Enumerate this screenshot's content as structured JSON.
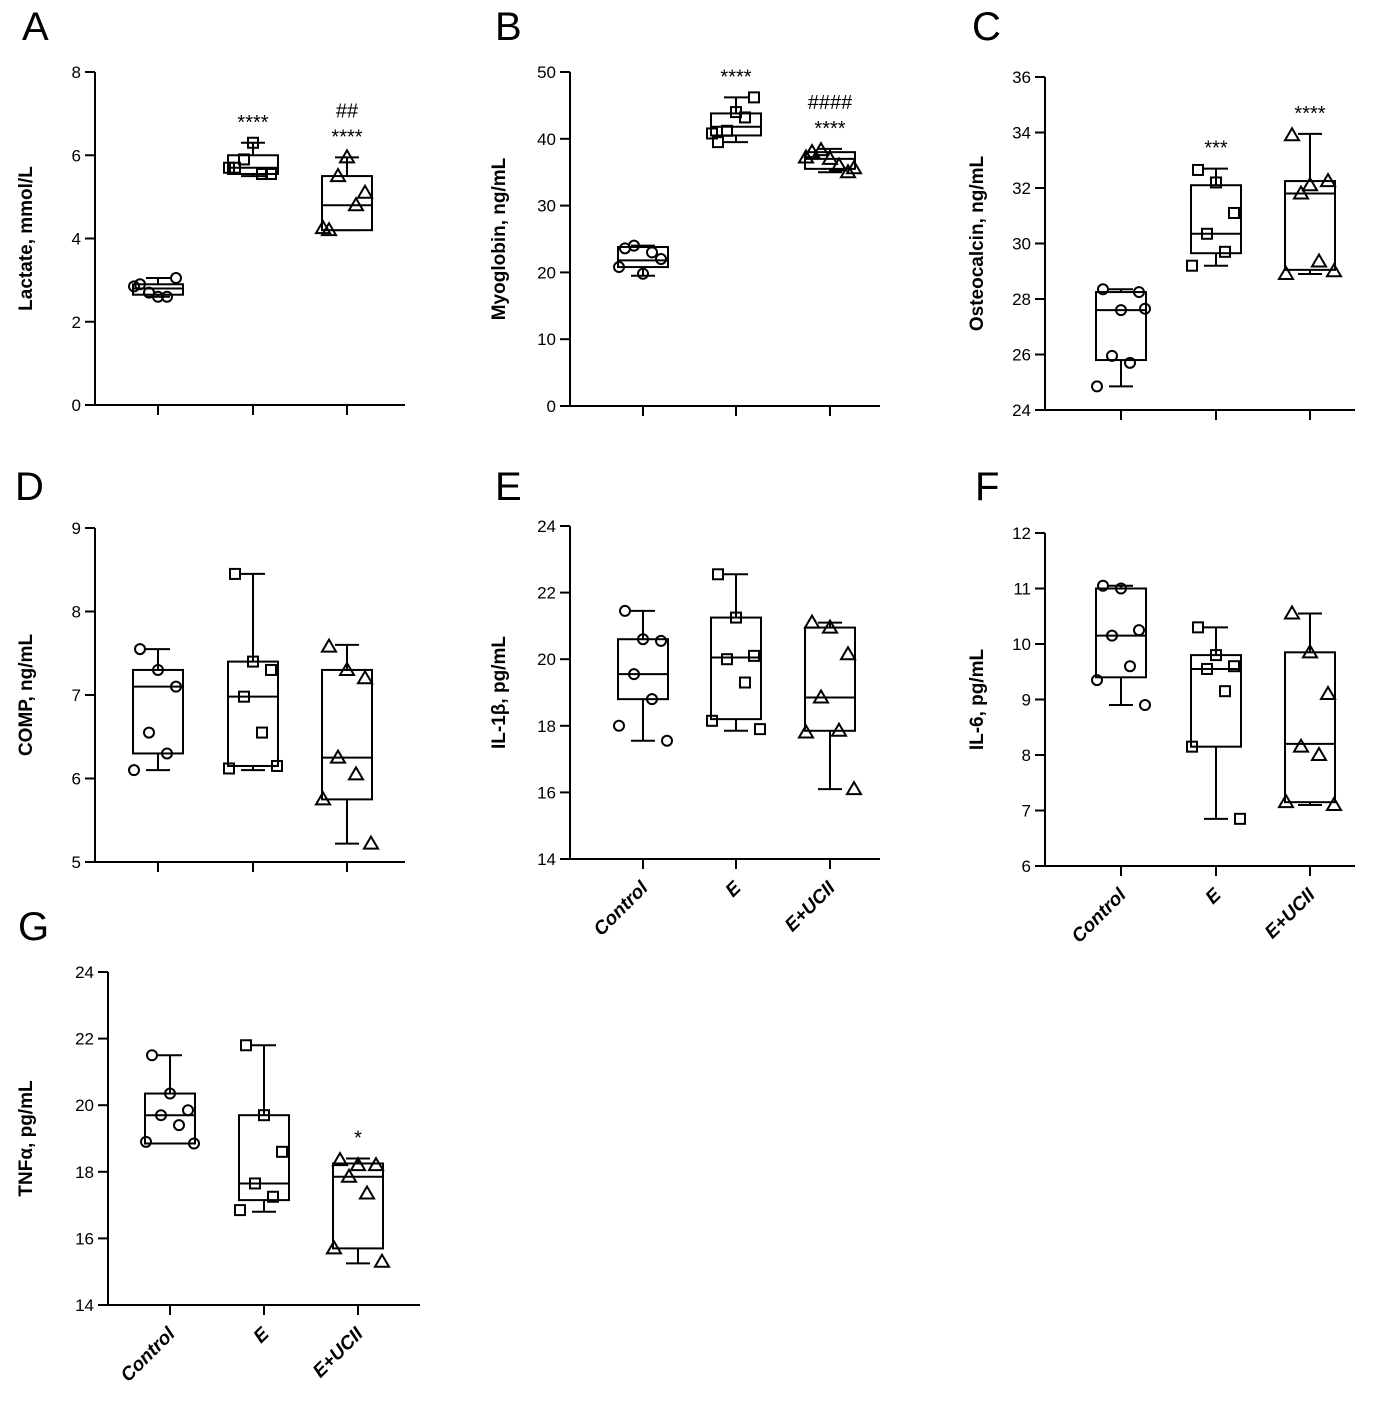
{
  "figure": {
    "groups": [
      "Control",
      "E",
      "E+UCII"
    ],
    "marker_shapes": [
      "circle",
      "square",
      "triangle"
    ]
  },
  "chart_data": [
    {
      "type": "box",
      "panel": "A",
      "ylabel": "Lactate, mmol/L",
      "ylim": [
        0,
        8
      ],
      "yticks": [
        0,
        2,
        4,
        6,
        8
      ],
      "show_xlabels": false,
      "groups": [
        {
          "name": "Control",
          "min": 2.6,
          "q1": 2.65,
          "median": 2.8,
          "q3": 2.9,
          "max": 3.05,
          "points": [
            2.9,
            2.6,
            3.05,
            2.7,
            2.6,
            2.85
          ],
          "annotations": []
        },
        {
          "name": "E",
          "min": 5.5,
          "q1": 5.55,
          "median": 5.7,
          "q3": 6.0,
          "max": 6.3,
          "points": [
            5.7,
            6.3,
            5.55,
            5.9,
            5.55,
            5.7
          ],
          "annotations": [
            "****"
          ]
        },
        {
          "name": "E+UCII",
          "min": 4.2,
          "q1": 4.2,
          "median": 4.8,
          "q3": 5.5,
          "max": 5.95,
          "points": [
            4.2,
            5.95,
            5.1,
            5.5,
            4.8,
            4.25
          ],
          "annotations": [
            "##",
            "****"
          ]
        }
      ]
    },
    {
      "type": "box",
      "panel": "B",
      "ylabel": "Myoglobin, ng/mL",
      "ylim": [
        0,
        50
      ],
      "yticks": [
        0,
        10,
        20,
        30,
        40,
        50
      ],
      "show_xlabels": false,
      "groups": [
        {
          "name": "Control",
          "min": 19.5,
          "q1": 20.8,
          "median": 21.8,
          "q3": 23.8,
          "max": 24.0,
          "points": [
            23.6,
            19.8,
            22.0,
            24.0,
            23.0,
            20.8
          ],
          "annotations": []
        },
        {
          "name": "E",
          "min": 39.5,
          "q1": 40.5,
          "median": 41.8,
          "q3": 43.8,
          "max": 46.2,
          "points": [
            39.5,
            44.0,
            46.2,
            41.2,
            43.2,
            40.8
          ],
          "annotations": [
            "****"
          ]
        },
        {
          "name": "E+UCII",
          "min": 35.0,
          "q1": 35.5,
          "median": 37.0,
          "q3": 38.0,
          "max": 38.5,
          "points": [
            38.0,
            37.0,
            35.0,
            38.3,
            36.0,
            37.2,
            35.6
          ],
          "annotations": [
            "####",
            "****"
          ]
        }
      ]
    },
    {
      "type": "box",
      "panel": "C",
      "ylabel": "Osteocalcin, ng/mL",
      "ylim": [
        24,
        36
      ],
      "yticks": [
        24,
        26,
        28,
        30,
        32,
        34,
        36
      ],
      "show_xlabels": false,
      "groups": [
        {
          "name": "Control",
          "min": 24.85,
          "q1": 25.8,
          "median": 27.6,
          "q3": 28.25,
          "max": 28.35,
          "points": [
            28.35,
            27.6,
            28.25,
            25.95,
            25.7,
            24.85,
            27.65
          ],
          "annotations": []
        },
        {
          "name": "E",
          "min": 29.2,
          "q1": 29.65,
          "median": 30.35,
          "q3": 32.1,
          "max": 32.7,
          "points": [
            32.65,
            32.2,
            31.1,
            30.35,
            29.7,
            29.2
          ],
          "annotations": [
            "***"
          ]
        },
        {
          "name": "E+UCII",
          "min": 28.9,
          "q1": 29.05,
          "median": 31.8,
          "q3": 32.25,
          "max": 33.95,
          "points": [
            33.9,
            32.1,
            32.25,
            31.8,
            29.35,
            28.9,
            29.0
          ],
          "annotations": [
            "****"
          ]
        }
      ]
    },
    {
      "type": "box",
      "panel": "D",
      "ylabel": "COMP, ng/mL",
      "ylim": [
        5,
        9
      ],
      "yticks": [
        5,
        6,
        7,
        8,
        9
      ],
      "show_xlabels": false,
      "groups": [
        {
          "name": "Control",
          "min": 6.1,
          "q1": 6.3,
          "median": 7.1,
          "q3": 7.3,
          "max": 7.55,
          "points": [
            7.55,
            7.3,
            7.1,
            6.55,
            6.3,
            6.1
          ],
          "annotations": []
        },
        {
          "name": "E",
          "min": 6.1,
          "q1": 6.15,
          "median": 6.98,
          "q3": 7.4,
          "max": 8.45,
          "points": [
            8.45,
            7.4,
            7.3,
            6.98,
            6.55,
            6.12,
            6.15
          ],
          "annotations": []
        },
        {
          "name": "E+UCII",
          "min": 5.22,
          "q1": 5.75,
          "median": 6.25,
          "q3": 7.3,
          "max": 7.6,
          "points": [
            7.58,
            7.3,
            7.2,
            6.25,
            6.05,
            5.75,
            5.22
          ],
          "annotations": []
        }
      ]
    },
    {
      "type": "box",
      "panel": "E",
      "ylabel": "IL-1β, pg/mL",
      "ylim": [
        14,
        24
      ],
      "yticks": [
        14,
        16,
        18,
        20,
        22,
        24
      ],
      "show_xlabels": true,
      "groups": [
        {
          "name": "Control",
          "min": 17.55,
          "q1": 18.8,
          "median": 19.55,
          "q3": 20.6,
          "max": 21.45,
          "points": [
            21.45,
            20.6,
            20.55,
            19.55,
            18.8,
            18.0,
            17.55
          ],
          "annotations": []
        },
        {
          "name": "E",
          "min": 17.85,
          "q1": 18.2,
          "median": 20.05,
          "q3": 21.25,
          "max": 22.55,
          "points": [
            22.55,
            21.25,
            20.1,
            20.0,
            19.3,
            18.15,
            17.9
          ],
          "annotations": []
        },
        {
          "name": "E+UCII",
          "min": 16.1,
          "q1": 17.85,
          "median": 18.85,
          "q3": 20.95,
          "max": 21.1,
          "points": [
            21.1,
            20.95,
            20.15,
            18.85,
            17.85,
            17.8,
            16.1
          ],
          "annotations": []
        }
      ]
    },
    {
      "type": "box",
      "panel": "F",
      "ylabel": "IL-6, pg/mL",
      "ylim": [
        6,
        12
      ],
      "yticks": [
        6,
        7,
        8,
        9,
        10,
        11,
        12
      ],
      "show_xlabels": true,
      "groups": [
        {
          "name": "Control",
          "min": 8.9,
          "q1": 9.4,
          "median": 10.15,
          "q3": 11.0,
          "max": 11.05,
          "points": [
            11.05,
            11.0,
            10.25,
            10.15,
            9.6,
            9.35,
            8.9
          ],
          "annotations": []
        },
        {
          "name": "E",
          "min": 6.85,
          "q1": 8.15,
          "median": 9.55,
          "q3": 9.8,
          "max": 10.3,
          "points": [
            10.3,
            9.8,
            9.6,
            9.55,
            9.15,
            8.15,
            6.85
          ],
          "annotations": []
        },
        {
          "name": "E+UCII",
          "min": 7.1,
          "q1": 7.15,
          "median": 8.2,
          "q3": 9.85,
          "max": 10.55,
          "points": [
            10.55,
            9.85,
            9.1,
            8.15,
            8.0,
            7.15,
            7.1
          ],
          "annotations": []
        }
      ]
    },
    {
      "type": "box",
      "panel": "G",
      "ylabel": "TNFα, pg/mL",
      "ylim": [
        14,
        24
      ],
      "yticks": [
        14,
        16,
        18,
        20,
        22,
        24
      ],
      "show_xlabels": true,
      "groups": [
        {
          "name": "Control",
          "min": 18.85,
          "q1": 18.85,
          "median": 19.7,
          "q3": 20.35,
          "max": 21.5,
          "points": [
            21.5,
            20.35,
            19.85,
            19.7,
            19.4,
            18.9,
            18.85
          ],
          "annotations": []
        },
        {
          "name": "E",
          "min": 16.8,
          "q1": 17.15,
          "median": 17.65,
          "q3": 19.7,
          "max": 21.8,
          "points": [
            21.8,
            19.7,
            18.6,
            17.65,
            17.25,
            16.85
          ],
          "annotations": []
        },
        {
          "name": "E+UCII",
          "min": 15.25,
          "q1": 15.7,
          "median": 17.85,
          "q3": 18.25,
          "max": 18.4,
          "points": [
            18.35,
            18.2,
            18.2,
            17.85,
            17.35,
            15.7,
            15.3
          ],
          "annotations": [
            "*"
          ]
        }
      ]
    }
  ]
}
